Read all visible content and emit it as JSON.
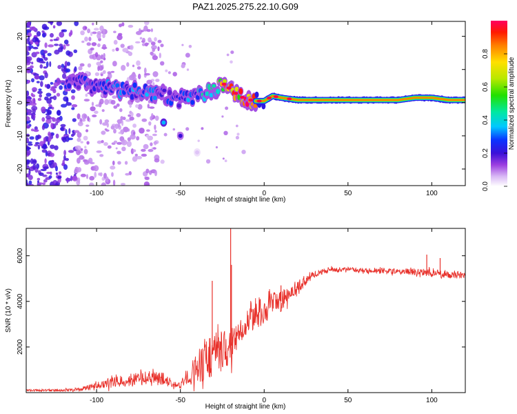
{
  "title": "PAZ1.2025.275.22.10.G09",
  "chart_data": [
    {
      "type": "heatmap",
      "xlabel": "Height of straight line (km)",
      "ylabel": "Frequency (Hz)",
      "xlim": [
        -142,
        120
      ],
      "ylim": [
        -25,
        24.5
      ],
      "xticks": [
        -100,
        -50,
        0,
        50,
        100
      ],
      "xtick_labels": [
        "-100",
        "-50",
        "0",
        "50",
        "100"
      ],
      "yticks": [
        20,
        10,
        0,
        -10,
        -20
      ],
      "ytick_labels": [
        "20",
        "10",
        "0",
        "-10",
        "-20"
      ],
      "colorbar": {
        "label": "Normalized spectral amplitude",
        "range": [
          0.0,
          1.0
        ],
        "ticks": [
          0.0,
          0.2,
          0.4,
          0.6,
          0.8
        ],
        "tick_labels": [
          "0.0",
          "0.2",
          "0.4",
          "0.6",
          "0.8"
        ]
      },
      "ridge": {
        "x": [
          -115,
          -100,
          -90,
          -80,
          -70,
          -60,
          -50,
          -40,
          -30,
          -25,
          -20,
          -15,
          -10,
          -5,
          0,
          5,
          10,
          20,
          40,
          60,
          80,
          90,
          100,
          110,
          120
        ],
        "freq": [
          6,
          5,
          4,
          3.5,
          3,
          2,
          1,
          2.5,
          4,
          6,
          4,
          2,
          1,
          0.5,
          0.5,
          2,
          1.5,
          0.8,
          0.8,
          0.8,
          0.8,
          1.5,
          1.5,
          0.8,
          0.8
        ],
        "amplitude": [
          0.25,
          0.25,
          0.3,
          0.3,
          0.3,
          0.25,
          0.25,
          0.35,
          0.45,
          0.8,
          0.85,
          0.9,
          0.95,
          0.95,
          0.95,
          0.95,
          0.95,
          0.98,
          0.98,
          0.98,
          0.9,
          0.95,
          0.95,
          0.95,
          0.95
        ]
      },
      "extra_blobs": [
        {
          "x": -60,
          "freq": -6,
          "amplitude": 0.35
        },
        {
          "x": -50,
          "freq": -10,
          "amplitude": 0.2
        },
        {
          "x": -40,
          "freq": -15,
          "amplitude": 0.05
        }
      ]
    },
    {
      "type": "line",
      "xlabel": "Height of straight line (km)",
      "ylabel": "SNR (10 * v/v)",
      "xlim": [
        -142,
        120
      ],
      "ylim": [
        0,
        7200
      ],
      "xticks": [
        -100,
        -50,
        0,
        50,
        100
      ],
      "xtick_labels": [
        "-100",
        "-50",
        "0",
        "50",
        "100"
      ],
      "yticks": [
        2000,
        4000,
        6000
      ],
      "ytick_labels": [
        "2000",
        "4000",
        "6000"
      ],
      "color": "#e8302a",
      "envelope": {
        "x": [
          -142,
          -120,
          -110,
          -100,
          -90,
          -80,
          -70,
          -60,
          -55,
          -50,
          -45,
          -40,
          -35,
          -30,
          -25,
          -20,
          -15,
          -10,
          -5,
          0,
          5,
          10,
          15,
          20,
          25,
          30,
          40,
          50,
          60,
          70,
          80,
          90,
          100,
          110,
          120
        ],
        "mean": [
          100,
          100,
          150,
          300,
          450,
          550,
          650,
          600,
          350,
          300,
          700,
          1100,
          1500,
          1700,
          1800,
          2000,
          2600,
          3100,
          3400,
          3600,
          3900,
          4000,
          4300,
          4600,
          4900,
          5200,
          5400,
          5400,
          5350,
          5350,
          5300,
          5300,
          5250,
          5150,
          5150
        ],
        "noise": [
          40,
          50,
          80,
          150,
          250,
          300,
          300,
          280,
          150,
          120,
          400,
          700,
          1000,
          1100,
          900,
          800,
          500,
          500,
          600,
          600,
          500,
          450,
          350,
          250,
          200,
          150,
          100,
          100,
          100,
          110,
          130,
          150,
          160,
          150,
          150
        ]
      },
      "spikes": [
        {
          "x": -20,
          "y": 7200
        },
        {
          "x": -19.5,
          "y": 5600
        },
        {
          "x": -31,
          "y": 4900
        },
        {
          "x": 10,
          "y": 4700
        },
        {
          "x": 97,
          "y": 6050
        },
        {
          "x": 105,
          "y": 5900
        }
      ]
    }
  ]
}
